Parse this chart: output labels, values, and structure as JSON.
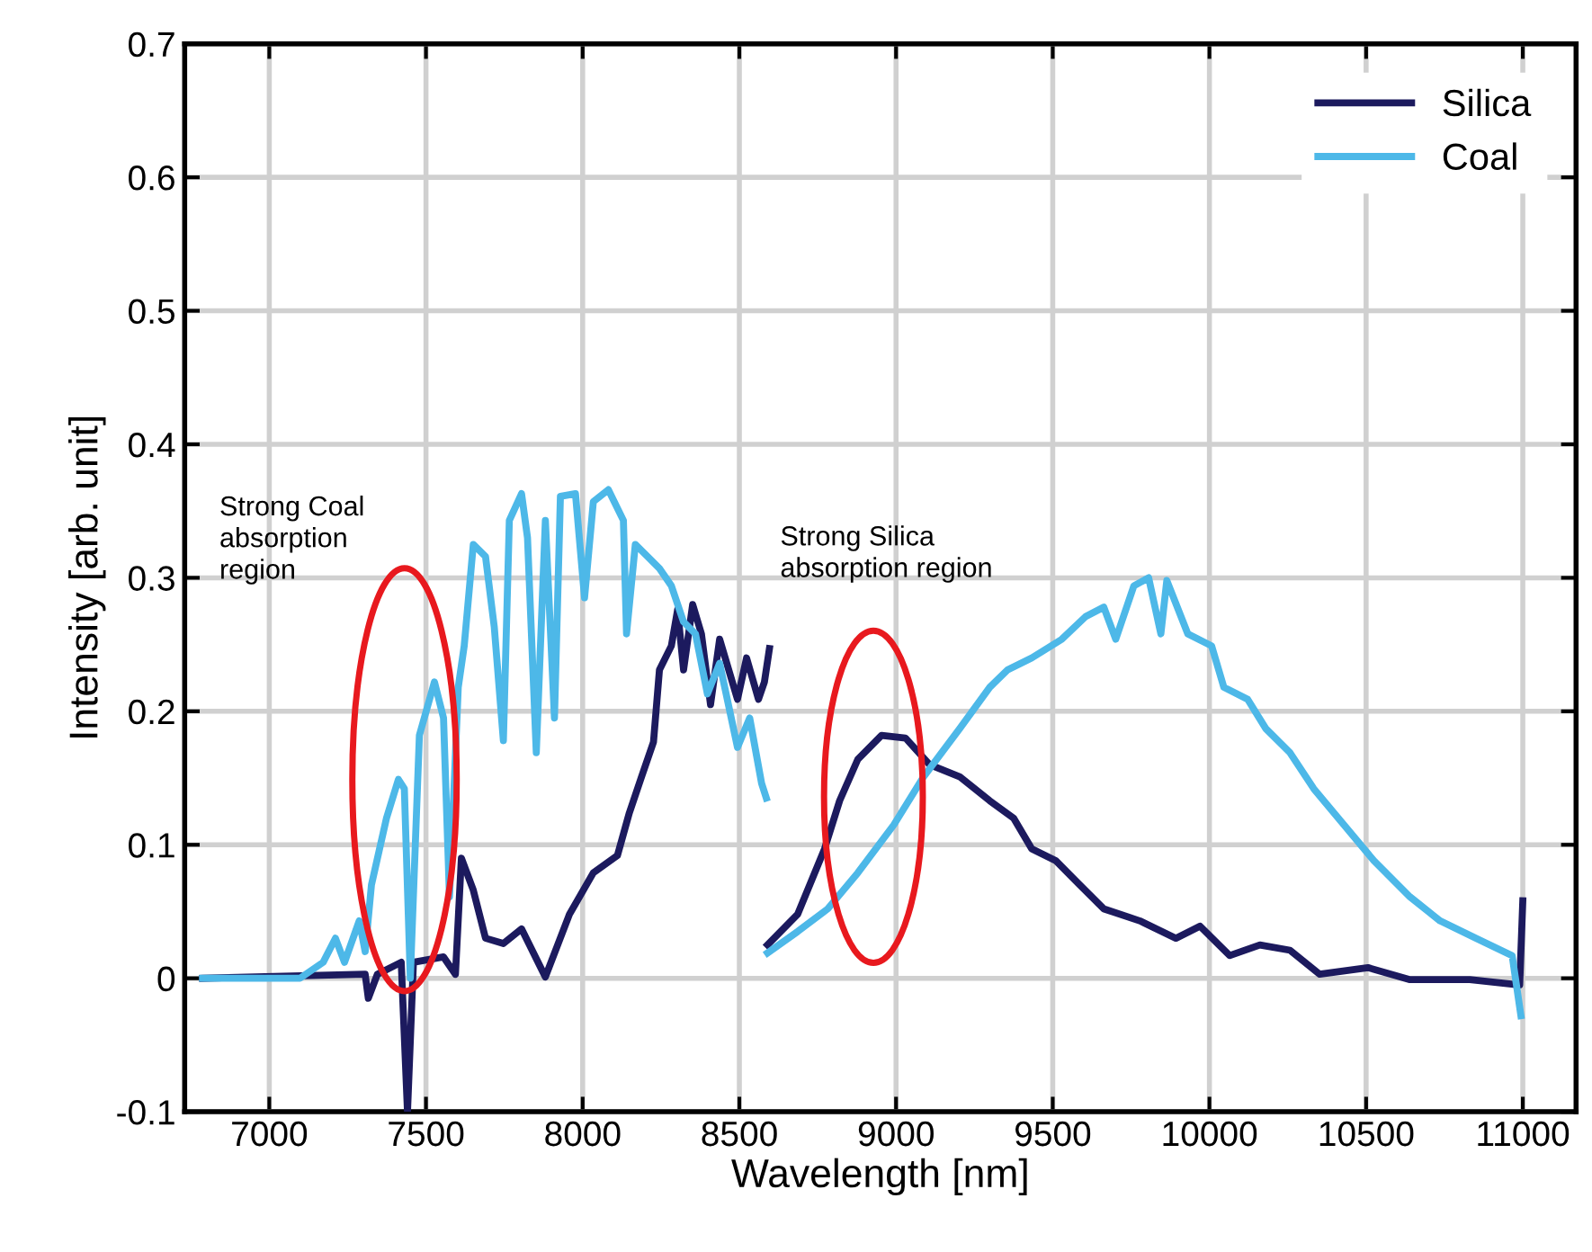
{
  "chart_data": {
    "type": "line",
    "xlabel": "Wavelength [nm]",
    "ylabel": "Intensity [arb. unit]",
    "xlim": [
      6730,
      11170
    ],
    "ylim": [
      -0.1,
      0.7
    ],
    "xticks": [
      7000,
      7500,
      8000,
      8500,
      9000,
      9500,
      10000,
      10500,
      11000
    ],
    "yticks": [
      -0.1,
      0,
      0.1,
      0.2,
      0.3,
      0.4,
      0.5,
      0.6,
      0.7
    ],
    "grid": true,
    "legend": "top right",
    "line_style": "solid",
    "marker": "none",
    "annotations": [
      "Strong Coal\nabsorption\nregion",
      "Strong Silica\nabsorption region"
    ],
    "series": [
      {
        "name": "Silica",
        "color": "#1c1a5e",
        "x": [
          6787,
          7306,
          7316,
          7345,
          7421,
          7441,
          7460,
          7556,
          7594,
          7613,
          7651,
          7690,
          7747,
          7805,
          7881,
          7958,
          8034,
          8111,
          8149,
          8188,
          8226,
          8245,
          8283,
          8303,
          8322,
          8351,
          8379,
          8408,
          8437,
          8494,
          8523,
          8561,
          8580,
          8596,
          8593,
          8590,
          8686,
          8772,
          8820,
          8878,
          8954,
          9030,
          9107,
          9203,
          9299,
          9375,
          9433,
          9510,
          9586,
          9663,
          9778,
          9893,
          9970,
          10065,
          10161,
          10257,
          10352,
          10506,
          10640,
          10831,
          10990,
          11000
        ],
        "values": [
          0,
          0.003,
          -0.015,
          0.003,
          0.012,
          -0.1,
          0.012,
          0.016,
          0.003,
          0.09,
          0.066,
          0.03,
          0.026,
          0.037,
          0.001,
          0.048,
          0.079,
          0.092,
          0.124,
          0.151,
          0.177,
          0.231,
          0.249,
          0.276,
          0.231,
          0.28,
          0.258,
          0.205,
          0.254,
          0.209,
          0.24,
          0.209,
          0.222,
          0.247,
          null,
          0.025,
          0.048,
          0.097,
          0.133,
          0.164,
          0.182,
          0.18,
          0.16,
          0.151,
          0.133,
          0.12,
          0.097,
          0.088,
          0.07,
          0.052,
          0.043,
          0.03,
          0.039,
          0.017,
          0.025,
          0.021,
          0.003,
          0.008,
          -0.001,
          -0.001,
          -0.005,
          0.058
        ]
      },
      {
        "name": "Coal",
        "color": "#4db8e8",
        "x": [
          6787,
          7098,
          7172,
          7211,
          7240,
          7287,
          7306,
          7326,
          7374,
          7412,
          7431,
          7450,
          7479,
          7527,
          7556,
          7575,
          7603,
          7622,
          7651,
          7690,
          7718,
          7747,
          7766,
          7805,
          7824,
          7852,
          7881,
          7910,
          7929,
          7977,
          8006,
          8034,
          8082,
          8130,
          8140,
          8168,
          8207,
          8245,
          8283,
          8322,
          8360,
          8398,
          8437,
          8494,
          8533,
          8571,
          8586,
          8588,
          8590,
          8686,
          8782,
          8878,
          8993,
          9088,
          9203,
          9299,
          9356,
          9433,
          9529,
          9605,
          9663,
          9701,
          9759,
          9806,
          9845,
          9864,
          9931,
          10007,
          10046,
          10122,
          10180,
          10257,
          10333,
          10429,
          10525,
          10640,
          10736,
          10851,
          10966,
          10994
        ],
        "values": [
          0,
          0,
          0.012,
          0.03,
          0.012,
          0.043,
          0.02,
          0.07,
          0.12,
          0.149,
          0.142,
          0,
          0.182,
          0.222,
          0.195,
          0.061,
          0.218,
          0.249,
          0.325,
          0.316,
          0.263,
          0.178,
          0.343,
          0.363,
          0.33,
          0.169,
          0.343,
          0.195,
          0.361,
          0.363,
          0.285,
          0.357,
          0.366,
          0.343,
          0.258,
          0.325,
          0.316,
          0.307,
          0.294,
          0.267,
          0.258,
          0.213,
          0.236,
          0.173,
          0.195,
          0.146,
          0.135,
          null,
          0.019,
          0.035,
          0.052,
          0.079,
          0.115,
          0.151,
          0.187,
          0.218,
          0.231,
          0.24,
          0.254,
          0.271,
          0.278,
          0.254,
          0.294,
          0.3,
          0.258,
          0.298,
          0.258,
          0.249,
          0.218,
          0.209,
          0.187,
          0.169,
          0.142,
          0.115,
          0.088,
          0.061,
          0.043,
          0.03,
          0.017,
          -0.028
        ]
      }
    ]
  }
}
